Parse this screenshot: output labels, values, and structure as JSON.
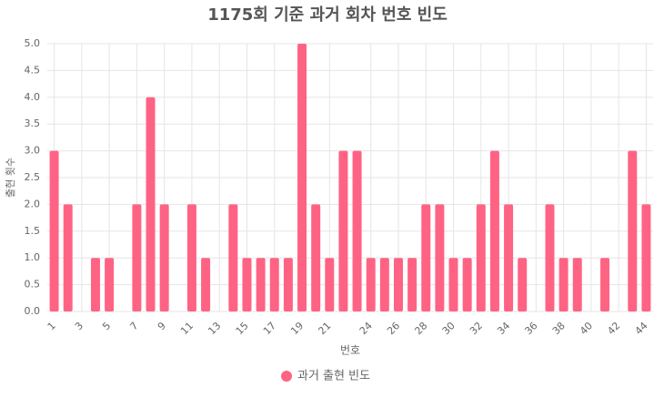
{
  "chart_data": {
    "type": "bar",
    "title": "1175회 기준 과거 회차 번호 빈도",
    "x_label": "번호",
    "y_label": "출현 횟수",
    "categories": [
      "1",
      null,
      "3",
      null,
      "5",
      null,
      "7",
      null,
      "9",
      null,
      "11",
      null,
      "13",
      null,
      "15",
      null,
      "17",
      null,
      "19",
      null,
      "21",
      null,
      null,
      "24",
      null,
      "26",
      null,
      "28",
      null,
      "30",
      null,
      "32",
      null,
      "34",
      null,
      "36",
      null,
      "38",
      null,
      "40",
      null,
      "42",
      null,
      "44"
    ],
    "series": [
      {
        "name": "과거 출현 빈도",
        "color": "#ff6384",
        "values": [
          3,
          2,
          0,
          1,
          1,
          0,
          2,
          4,
          2,
          0,
          2,
          1,
          0,
          2,
          1,
          1,
          1,
          1,
          5,
          2,
          1,
          3,
          3,
          1,
          1,
          1,
          1,
          2,
          2,
          1,
          1,
          2,
          3,
          2,
          1,
          0,
          2,
          1,
          1,
          0,
          1,
          0,
          3,
          2
        ]
      }
    ],
    "ylim": [
      0,
      5
    ],
    "yticks": [
      {
        "value": 0,
        "label": "0.0"
      },
      {
        "value": 0.5,
        "label": "0.5"
      },
      {
        "value": 1,
        "label": "1.0"
      },
      {
        "value": 1.5,
        "label": "1.5"
      },
      {
        "value": 2,
        "label": "2.0"
      },
      {
        "value": 2.5,
        "label": "2.5"
      },
      {
        "value": 3,
        "label": "3.0"
      },
      {
        "value": 3.5,
        "label": "3.5"
      },
      {
        "value": 4,
        "label": "4.0"
      },
      {
        "value": 4.5,
        "label": "4.5"
      },
      {
        "value": 5,
        "label": "5.0"
      }
    ],
    "grid": true,
    "legend": "bottom"
  }
}
